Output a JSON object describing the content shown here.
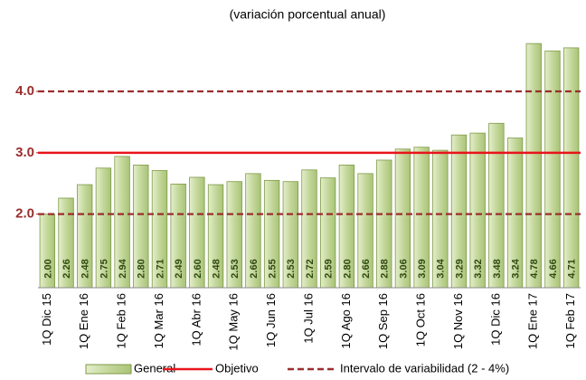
{
  "chart_data": {
    "type": "bar",
    "subtitle": "(variación porcentual anual)",
    "categories": [
      "1Q Dic 15",
      null,
      "1Q Ene 16",
      null,
      "1Q Feb 16",
      null,
      "1Q Mar 16",
      null,
      "1Q Abr 16",
      null,
      "1Q May 16",
      null,
      "1Q Jun 16",
      null,
      "1Q Jul 16",
      null,
      "1Q Ago 16",
      null,
      "1Q Sep 16",
      null,
      "1Q Oct 16",
      null,
      "1Q Nov 16",
      null,
      "1Q Dic 16",
      null,
      "1Q Ene 17",
      null,
      "1Q Feb 17"
    ],
    "series": [
      {
        "name": "General",
        "color": "#c4d79b",
        "values": [
          2.0,
          2.26,
          2.48,
          2.75,
          2.94,
          2.8,
          2.71,
          2.49,
          2.6,
          2.48,
          2.53,
          2.66,
          2.55,
          2.53,
          2.72,
          2.59,
          2.8,
          2.66,
          2.88,
          3.06,
          3.09,
          3.04,
          3.29,
          3.32,
          3.48,
          3.24,
          4.78,
          4.66,
          4.71
        ],
        "value_labels": [
          "2.00",
          "2.26",
          "2.48",
          "2.75",
          "2.94",
          "2.80",
          "2.71",
          "2.49",
          "2.60",
          "2.48",
          "2.53",
          "2.66",
          "2.55",
          "2.53",
          "2.72",
          "2.59",
          "2.80",
          "2.66",
          "2.88",
          "3.06",
          "3.09",
          "3.04",
          "3.29",
          "3.32",
          "3.48",
          "3.24",
          "4.78",
          "4.66",
          "4.71"
        ]
      }
    ],
    "reference_lines": [
      {
        "name": "Objetivo",
        "values": [
          3
        ],
        "color": "#e8141b",
        "style": "solid"
      },
      {
        "name": "Intervalo de variabilidad (2 - 4%)",
        "values": [
          2,
          4
        ],
        "color": "#9b2d2d",
        "style": "dashed"
      }
    ],
    "ylim": [
      0.8,
      4.9
    ],
    "yticks": [
      {
        "value": 2,
        "label": "2.0"
      },
      {
        "value": 3,
        "label": "3.0"
      },
      {
        "value": 4,
        "label": "4.0"
      }
    ],
    "grid": false
  }
}
